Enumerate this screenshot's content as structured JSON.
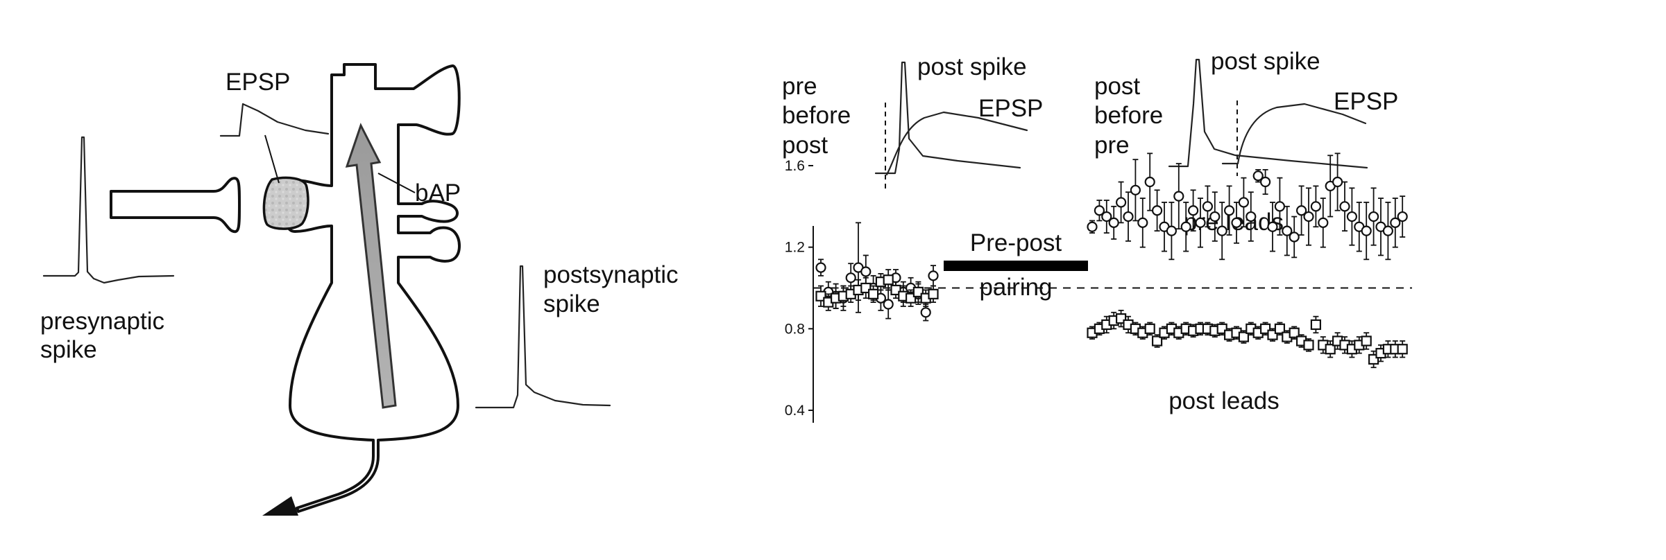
{
  "diagram": {
    "labels": {
      "epsp": "EPSP",
      "bap": "bAP",
      "presynaptic_line1": "presynaptic",
      "presynaptic_line2": "spike",
      "postsynaptic_line1": "postsynaptic",
      "postsynaptic_line2": "spike"
    }
  },
  "insets": {
    "pre_before_post": {
      "label_lines": [
        "pre",
        "before",
        "post"
      ],
      "spike_label": "post spike",
      "epsp_label": "EPSP"
    },
    "post_before_pre": {
      "label_lines": [
        "post",
        "before",
        "pre"
      ],
      "spike_label": "post spike",
      "epsp_label": "EPSP"
    }
  },
  "plot": {
    "pairing_label_line1": "Pre-post",
    "pairing_label_line2": "pairing",
    "pre_leads_label": "pre leads",
    "post_leads_label": "post leads"
  },
  "chart_data": {
    "type": "scatter",
    "ylim": [
      0.4,
      1.8
    ],
    "yticks": [
      "1.6",
      "1.2",
      "0.8",
      "0.4"
    ],
    "reference_line": 1.0,
    "grid": false,
    "series": [
      {
        "name": "pre leads",
        "marker": "circle",
        "baseline_y": [
          1.1,
          0.98,
          0.96,
          0.95,
          1.05,
          1.1,
          1.08,
          1.0,
          0.95,
          0.92,
          1.05,
          0.98,
          1.0,
          0.97,
          0.88,
          1.06
        ],
        "baseline_err": [
          0.04,
          0.05,
          0.06,
          0.06,
          0.07,
          0.22,
          0.08,
          0.06,
          0.06,
          0.07,
          0.04,
          0.05,
          0.05,
          0.05,
          0.04,
          0.05
        ],
        "post_y": [
          1.3,
          1.38,
          1.35,
          1.32,
          1.42,
          1.35,
          1.48,
          1.32,
          1.52,
          1.38,
          1.3,
          1.28,
          1.45,
          1.3,
          1.38,
          1.32,
          1.4,
          1.35,
          1.28,
          1.38,
          1.32,
          1.42,
          1.35,
          1.55,
          1.52,
          1.3,
          1.4,
          1.28,
          1.25,
          1.38,
          1.35,
          1.4,
          1.32,
          1.5,
          1.52,
          1.4,
          1.35,
          1.3,
          1.28,
          1.35,
          1.3,
          1.28,
          1.32,
          1.35
        ],
        "post_err": [
          0.03,
          0.05,
          0.08,
          0.08,
          0.1,
          0.12,
          0.15,
          0.12,
          0.14,
          0.1,
          0.12,
          0.14,
          0.16,
          0.12,
          0.1,
          0.12,
          0.1,
          0.12,
          0.14,
          0.12,
          0.1,
          0.12,
          0.12,
          0.03,
          0.06,
          0.12,
          0.14,
          0.12,
          0.1,
          0.12,
          0.14,
          0.1,
          0.12,
          0.15,
          0.14,
          0.12,
          0.14,
          0.12,
          0.14,
          0.14,
          0.14,
          0.14,
          0.12,
          0.1
        ]
      },
      {
        "name": "post leads",
        "marker": "square",
        "baseline_y": [
          0.96,
          0.93,
          0.95,
          0.96,
          0.97,
          0.99,
          1.0,
          0.97,
          1.03,
          1.04,
          0.99,
          0.96,
          0.95,
          0.98,
          0.95,
          0.97
        ],
        "baseline_err": [
          0.05,
          0.04,
          0.05,
          0.05,
          0.04,
          0.05,
          0.05,
          0.04,
          0.04,
          0.05,
          0.04,
          0.05,
          0.04,
          0.05,
          0.04,
          0.04
        ],
        "post_y": [
          0.78,
          0.8,
          0.82,
          0.84,
          0.85,
          0.82,
          0.8,
          0.78,
          0.8,
          0.74,
          0.78,
          0.8,
          0.78,
          0.8,
          0.79,
          0.8,
          0.8,
          0.79,
          0.8,
          0.77,
          0.78,
          0.76,
          0.8,
          0.78,
          0.8,
          0.77,
          0.8,
          0.76,
          0.78,
          0.74,
          0.72,
          0.82,
          0.72,
          0.7,
          0.74,
          0.72,
          0.7,
          0.72,
          0.74,
          0.65,
          0.68,
          0.7,
          0.7,
          0.7
        ],
        "post_err": [
          0.03,
          0.03,
          0.04,
          0.04,
          0.04,
          0.04,
          0.03,
          0.03,
          0.03,
          0.03,
          0.03,
          0.03,
          0.03,
          0.03,
          0.03,
          0.03,
          0.03,
          0.03,
          0.03,
          0.03,
          0.03,
          0.03,
          0.03,
          0.03,
          0.03,
          0.03,
          0.03,
          0.03,
          0.03,
          0.03,
          0.03,
          0.04,
          0.04,
          0.04,
          0.04,
          0.04,
          0.04,
          0.04,
          0.04,
          0.04,
          0.04,
          0.04,
          0.04,
          0.04
        ]
      }
    ]
  }
}
